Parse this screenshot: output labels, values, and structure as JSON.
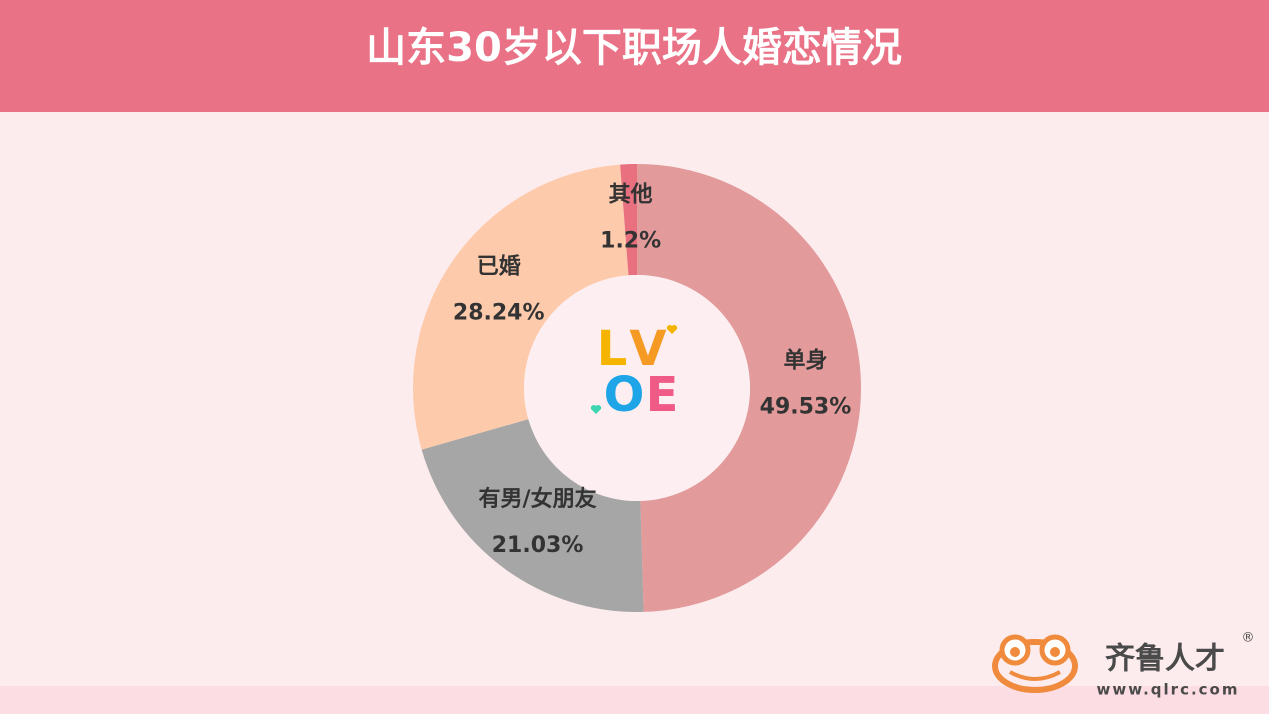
{
  "chart_data": {
    "type": "donut",
    "title": "山东30岁以下职场人婚恋情况",
    "categories": [
      "单身",
      "有男/女朋友",
      "已婚",
      "其他"
    ],
    "values": [
      49.53,
      21.03,
      28.24,
      1.2
    ],
    "value_labels": [
      "49.53%",
      "21.03%",
      "28.24%",
      "1.2%"
    ],
    "colors": [
      "#e29a9a",
      "#a6a6a6",
      "#fdcbac",
      "#e8707f"
    ],
    "center_logo": [
      {
        "text": "L",
        "color": "#f5b400"
      },
      {
        "text": "V",
        "color": "#f59a23"
      },
      {
        "text": "O",
        "color": "#1ea5e8"
      },
      {
        "text": "E",
        "color": "#ef5a86"
      }
    ]
  },
  "brand": {
    "name": "齐鲁人才",
    "mark": "®",
    "url": "www.qlrc.com"
  }
}
